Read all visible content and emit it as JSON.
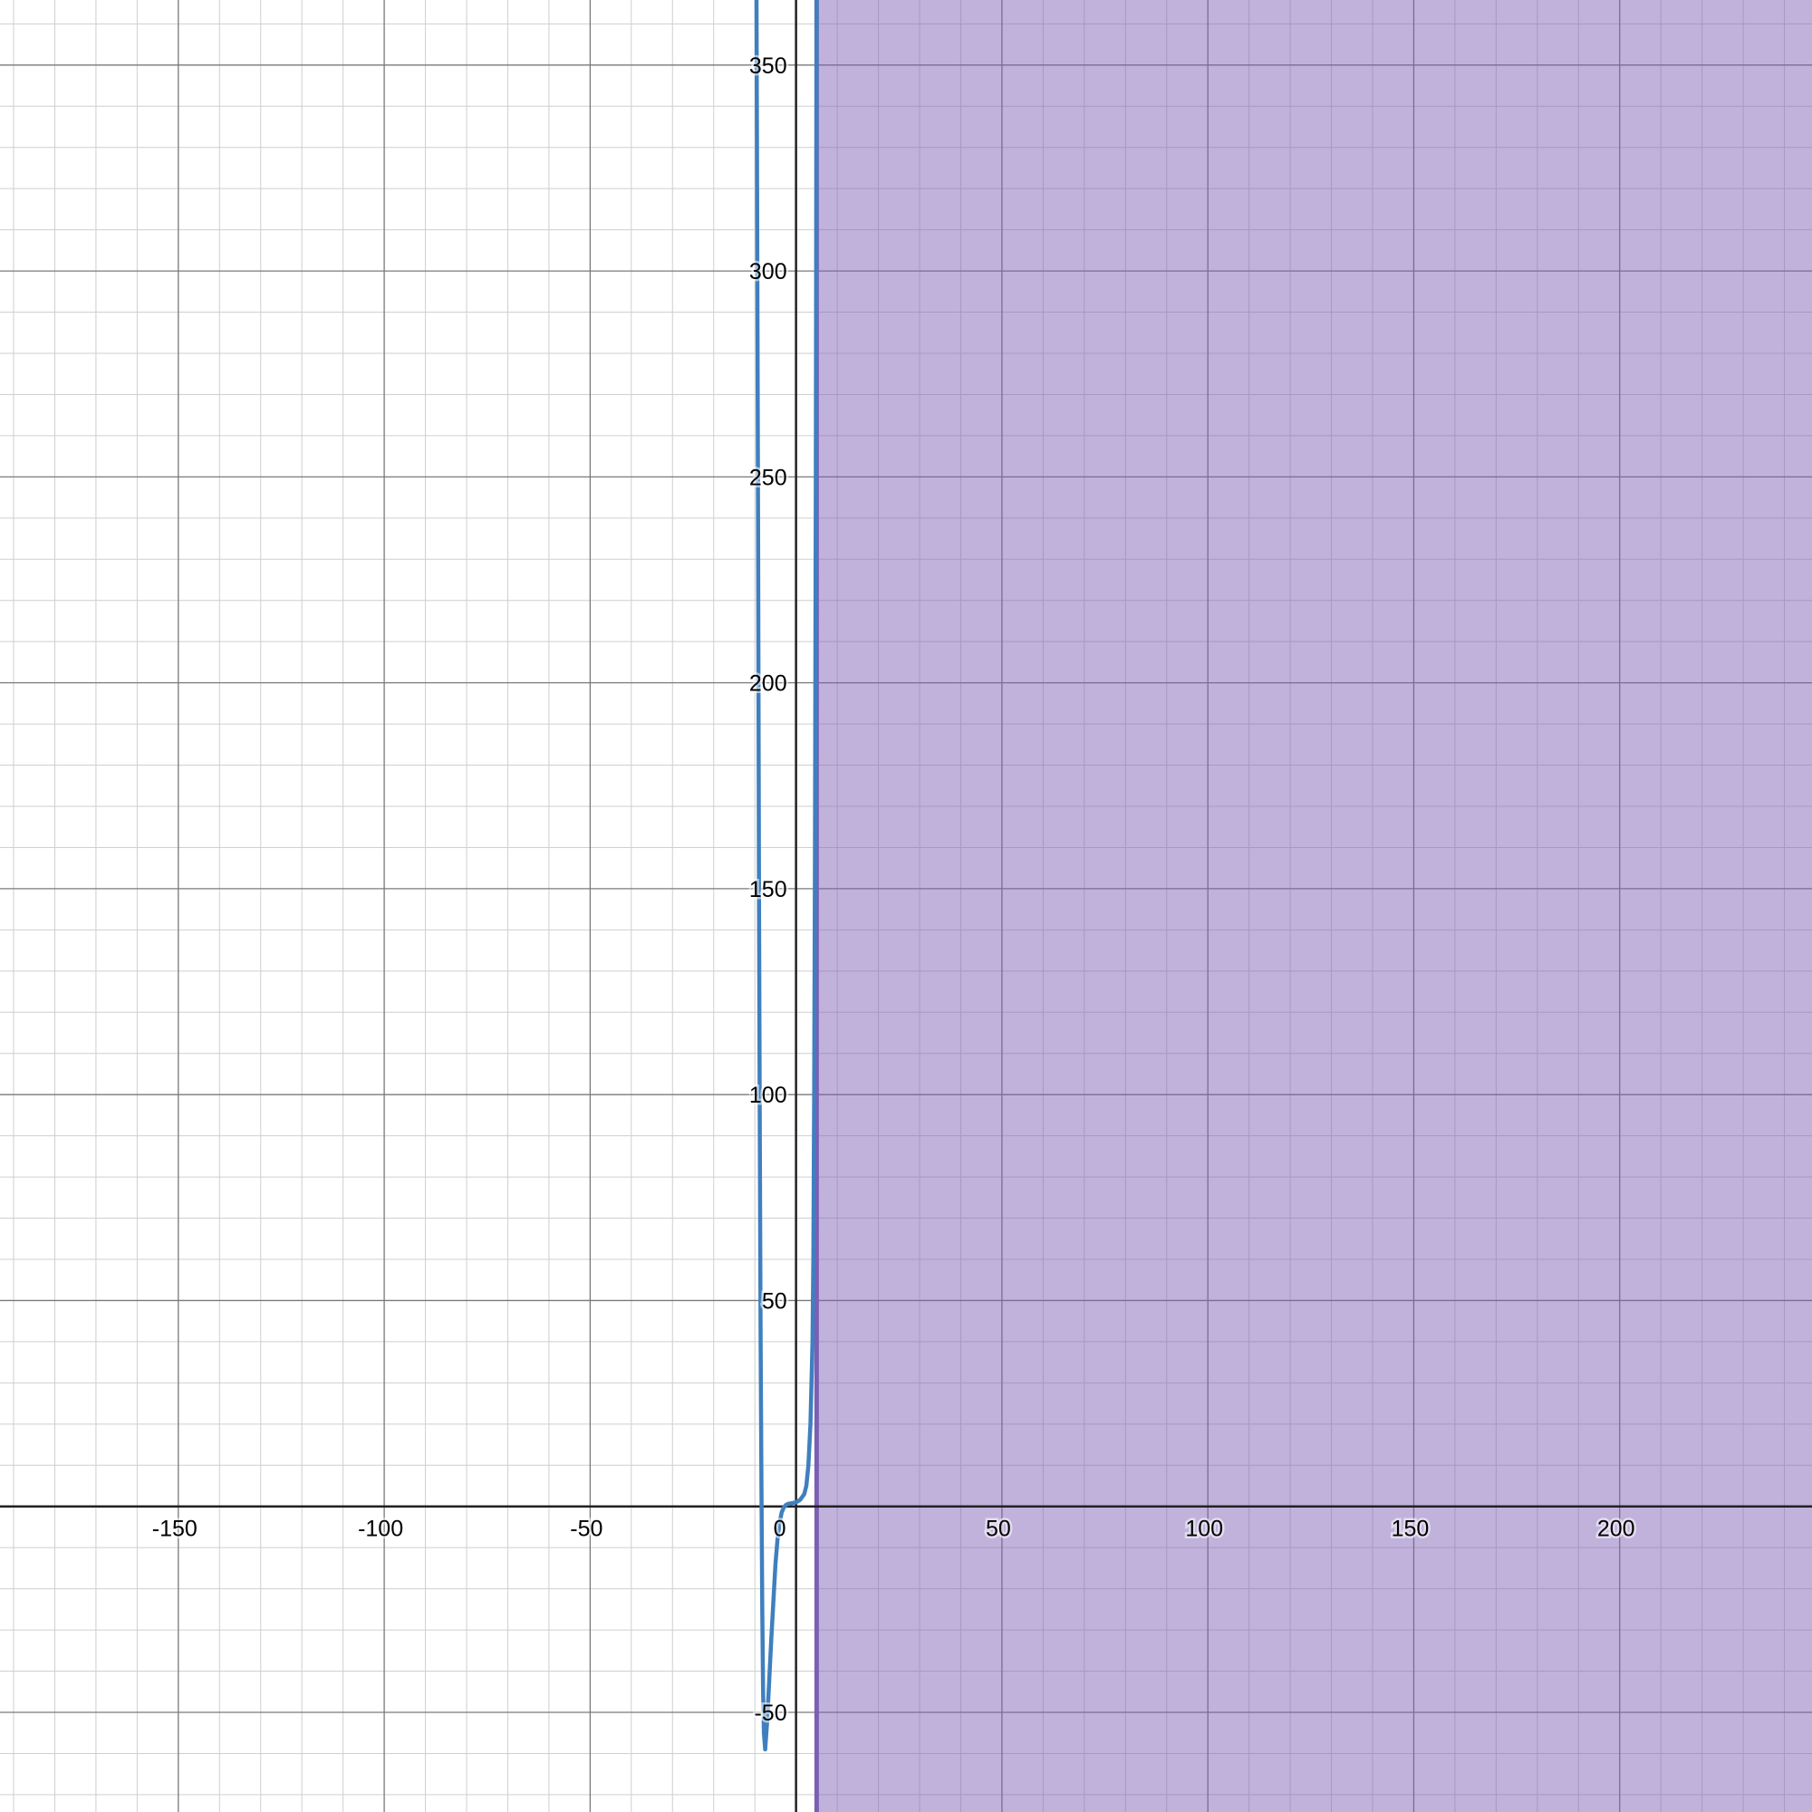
{
  "chart_data": {
    "type": "line",
    "title": "",
    "xlabel": "",
    "ylabel": "",
    "xlim": [
      -193.3,
      246.7
    ],
    "ylim": [
      -74.2,
      365.8
    ],
    "grid": true,
    "x_ticks": [
      {
        "value": -150,
        "label": "-150"
      },
      {
        "value": -100,
        "label": "-100"
      },
      {
        "value": -50,
        "label": "-50"
      },
      {
        "value": 0,
        "label": "0"
      },
      {
        "value": 50,
        "label": "50"
      },
      {
        "value": 100,
        "label": "100"
      },
      {
        "value": 150,
        "label": "150"
      },
      {
        "value": 200,
        "label": "200"
      }
    ],
    "y_ticks": [
      {
        "value": -50,
        "label": "-50"
      },
      {
        "value": 50,
        "label": "50"
      },
      {
        "value": 100,
        "label": "100"
      },
      {
        "value": 150,
        "label": "150"
      },
      {
        "value": 200,
        "label": "200"
      },
      {
        "value": 250,
        "label": "250"
      },
      {
        "value": 300,
        "label": "300"
      },
      {
        "value": 350,
        "label": "350"
      }
    ],
    "series": [
      {
        "color": "#3f7fbf",
        "x": [
          -9.6,
          -9.4,
          -9.2,
          -9.0,
          -8.8,
          -8.6,
          -8.4,
          -8.2,
          -8.0,
          -7.8,
          -7.5,
          -7.0,
          -6.5,
          -6.0,
          -5.5,
          -5.0,
          -4.5,
          -4.0,
          -3.5,
          -3.0,
          -2.5,
          -2.0,
          -1.0,
          0.0,
          1.0,
          2.0,
          2.5,
          3.0,
          3.5,
          4.0,
          4.2,
          4.4,
          4.6,
          4.8,
          5.0
        ],
        "y": [
          365.8,
          300,
          230,
          150,
          90,
          40,
          5,
          -25,
          -45,
          -55,
          -59,
          -52,
          -42,
          -32,
          -23,
          -14,
          -8,
          -4,
          -1.5,
          -0.3,
          0.3,
          0.6,
          0.8,
          1.0,
          1.6,
          3,
          5,
          10,
          20,
          40,
          60,
          100,
          160,
          250,
          365.8
        ]
      }
    ],
    "shaded_region": {
      "color": "#7b5fb3",
      "boundary_x": 5,
      "side": "right"
    }
  }
}
